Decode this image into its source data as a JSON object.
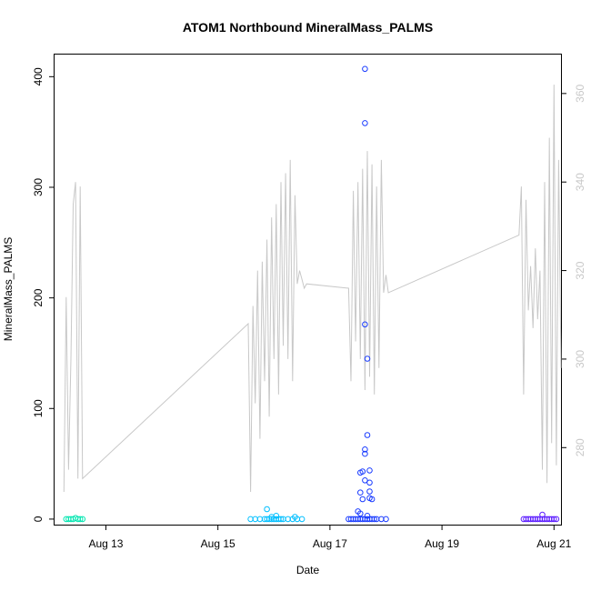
{
  "chart_data": {
    "type": "scatter",
    "title": "ATOM1 Northbound MineralMass_PALMS",
    "xlabel": "Date",
    "ylabel": "MineralMass_PALMS",
    "x_axis": {
      "type": "date",
      "range": [
        "Aug 12 02:00",
        "Aug 21 03:00"
      ],
      "ticks": [
        "Aug 13",
        "Aug 15",
        "Aug 17",
        "Aug 19",
        "Aug 21"
      ]
    },
    "y_axis": {
      "range": [
        -5,
        420
      ],
      "ticks": [
        0,
        100,
        200,
        300,
        400
      ]
    },
    "y2_axis": {
      "range": [
        262.6,
        368.8
      ],
      "ticks": [
        280,
        300,
        320,
        340,
        360
      ],
      "color": "#c8c8c8"
    },
    "grid": false,
    "series": [
      {
        "kind": "points",
        "color": "#00e6b0",
        "points": [
          [
            "Aug 12 07:00",
            0
          ],
          [
            "Aug 12 08:00",
            0
          ],
          [
            "Aug 12 09:00",
            0
          ],
          [
            "Aug 12 10:00",
            0
          ],
          [
            "Aug 12 11:00",
            1
          ],
          [
            "Aug 12 12:00",
            0
          ],
          [
            "Aug 12 13:00",
            0
          ],
          [
            "Aug 12 14:00",
            0
          ]
        ]
      },
      {
        "kind": "points",
        "color": "#00bfff",
        "points": [
          [
            "Aug 15 14:00",
            0
          ],
          [
            "Aug 15 16:00",
            0
          ],
          [
            "Aug 15 18:00",
            0
          ],
          [
            "Aug 15 20:00",
            0
          ],
          [
            "Aug 15 21:00",
            0
          ],
          [
            "Aug 15 22:00",
            0
          ],
          [
            "Aug 15 23:00",
            0
          ],
          [
            "Aug 16 00:00",
            0
          ],
          [
            "Aug 16 01:00",
            0
          ],
          [
            "Aug 16 02:00",
            0
          ],
          [
            "Aug 16 03:00",
            0
          ],
          [
            "Aug 16 04:00",
            0
          ],
          [
            "Aug 16 06:00",
            0
          ],
          [
            "Aug 16 08:00",
            0
          ],
          [
            "Aug 16 10:00",
            0
          ],
          [
            "Aug 16 12:00",
            0
          ],
          [
            "Aug 15 21:00",
            9
          ],
          [
            "Aug 15 23:00",
            2
          ],
          [
            "Aug 16 01:00",
            3
          ],
          [
            "Aug 16 09:00",
            2
          ]
        ]
      },
      {
        "kind": "points",
        "color": "#1a3cff",
        "points": [
          [
            "Aug 17 08:00",
            0
          ],
          [
            "Aug 17 09:00",
            0
          ],
          [
            "Aug 17 10:00",
            0
          ],
          [
            "Aug 17 11:00",
            0
          ],
          [
            "Aug 17 12:00",
            0
          ],
          [
            "Aug 17 13:00",
            0
          ],
          [
            "Aug 17 14:00",
            0
          ],
          [
            "Aug 17 15:00",
            0
          ],
          [
            "Aug 17 16:00",
            0
          ],
          [
            "Aug 17 17:00",
            0
          ],
          [
            "Aug 17 18:00",
            0
          ],
          [
            "Aug 17 19:00",
            0
          ],
          [
            "Aug 17 20:00",
            0
          ],
          [
            "Aug 17 22:00",
            0
          ],
          [
            "Aug 18 00:00",
            0
          ],
          [
            "Aug 17 12:00",
            7
          ],
          [
            "Aug 17 13:00",
            5
          ],
          [
            "Aug 17 13:00",
            24
          ],
          [
            "Aug 17 14:00",
            18
          ],
          [
            "Aug 17 13:00",
            42
          ],
          [
            "Aug 17 14:00",
            43
          ],
          [
            "Aug 17 15:00",
            63
          ],
          [
            "Aug 17 15:00",
            59
          ],
          [
            "Aug 17 15:00",
            35
          ],
          [
            "Aug 17 16:00",
            76
          ],
          [
            "Aug 17 16:00",
            3
          ],
          [
            "Aug 17 17:00",
            44
          ],
          [
            "Aug 17 17:00",
            33
          ],
          [
            "Aug 17 17:00",
            25
          ],
          [
            "Aug 17 17:00",
            19
          ],
          [
            "Aug 17 18:00",
            18
          ],
          [
            "Aug 17 16:00",
            145
          ],
          [
            "Aug 17 15:00",
            176
          ],
          [
            "Aug 17 15:00",
            358
          ],
          [
            "Aug 17 15:00",
            407
          ]
        ]
      },
      {
        "kind": "points",
        "color": "#5a1aff",
        "points": [
          [
            "Aug 20 11:00",
            0
          ],
          [
            "Aug 20 12:00",
            0
          ],
          [
            "Aug 20 13:00",
            0
          ],
          [
            "Aug 20 14:00",
            0
          ],
          [
            "Aug 20 15:00",
            0
          ],
          [
            "Aug 20 16:00",
            0
          ],
          [
            "Aug 20 17:00",
            0
          ],
          [
            "Aug 20 18:00",
            0
          ],
          [
            "Aug 20 19:00",
            0
          ],
          [
            "Aug 20 20:00",
            0
          ],
          [
            "Aug 20 21:00",
            0
          ],
          [
            "Aug 20 22:00",
            0
          ],
          [
            "Aug 20 23:00",
            0
          ],
          [
            "Aug 21 00:00",
            0
          ],
          [
            "Aug 21 01:00",
            0
          ],
          [
            "Aug 20 19:00",
            4
          ]
        ]
      },
      {
        "kind": "line",
        "axis": "y2",
        "color": "#c8c8c8",
        "points": [
          [
            "Aug 12 06:00",
            270
          ],
          [
            "Aug 12 07:00",
            314
          ],
          [
            "Aug 12 08:00",
            275
          ],
          [
            "Aug 12 09:00",
            300
          ],
          [
            "Aug 12 10:00",
            335
          ],
          [
            "Aug 12 11:00",
            340
          ],
          [
            "Aug 12 12:00",
            273
          ],
          [
            "Aug 12 13:00",
            339
          ],
          [
            "Aug 12 14:00",
            273
          ],
          [
            "Aug 15 13:00",
            308
          ],
          [
            "Aug 15 14:00",
            270
          ],
          [
            "Aug 15 15:00",
            312
          ],
          [
            "Aug 15 16:00",
            290
          ],
          [
            "Aug 15 17:00",
            320
          ],
          [
            "Aug 15 18:00",
            282
          ],
          [
            "Aug 15 19:00",
            322
          ],
          [
            "Aug 15 20:00",
            295
          ],
          [
            "Aug 15 21:00",
            327
          ],
          [
            "Aug 15 22:00",
            287
          ],
          [
            "Aug 15 23:00",
            332
          ],
          [
            "Aug 16 00:00",
            300
          ],
          [
            "Aug 16 01:00",
            335
          ],
          [
            "Aug 16 02:00",
            292
          ],
          [
            "Aug 16 03:00",
            340
          ],
          [
            "Aug 16 04:00",
            303
          ],
          [
            "Aug 16 05:00",
            342
          ],
          [
            "Aug 16 06:00",
            300
          ],
          [
            "Aug 16 07:00",
            345
          ],
          [
            "Aug 16 08:00",
            295
          ],
          [
            "Aug 16 09:00",
            337
          ],
          [
            "Aug 16 10:00",
            317
          ],
          [
            "Aug 16 11:00",
            320
          ],
          [
            "Aug 16 12:00",
            318
          ],
          [
            "Aug 16 13:00",
            316
          ],
          [
            "Aug 16 14:00",
            317
          ],
          [
            "Aug 17 08:00",
            316
          ],
          [
            "Aug 17 09:00",
            295
          ],
          [
            "Aug 17 10:00",
            338
          ],
          [
            "Aug 17 11:00",
            304
          ],
          [
            "Aug 17 12:00",
            340
          ],
          [
            "Aug 17 13:00",
            300
          ],
          [
            "Aug 17 14:00",
            343
          ],
          [
            "Aug 17 15:00",
            293
          ],
          [
            "Aug 17 16:00",
            347
          ],
          [
            "Aug 17 17:00",
            296
          ],
          [
            "Aug 17 18:00",
            344
          ],
          [
            "Aug 17 19:00",
            292
          ],
          [
            "Aug 17 20:00",
            339
          ],
          [
            "Aug 17 21:00",
            298
          ],
          [
            "Aug 17 22:00",
            345
          ],
          [
            "Aug 17 23:00",
            315
          ],
          [
            "Aug 18 00:00",
            319
          ],
          [
            "Aug 18 01:00",
            315
          ],
          [
            "Aug 20 09:00",
            328
          ],
          [
            "Aug 20 10:00",
            339
          ],
          [
            "Aug 20 11:00",
            292
          ],
          [
            "Aug 20 12:00",
            336
          ],
          [
            "Aug 20 13:00",
            311
          ],
          [
            "Aug 20 14:00",
            321
          ],
          [
            "Aug 20 15:00",
            307
          ],
          [
            "Aug 20 16:00",
            325
          ],
          [
            "Aug 20 17:00",
            309
          ],
          [
            "Aug 20 18:00",
            320
          ],
          [
            "Aug 20 19:00",
            275
          ],
          [
            "Aug 20 20:00",
            340
          ],
          [
            "Aug 20 21:00",
            272
          ],
          [
            "Aug 20 22:00",
            350
          ],
          [
            "Aug 20 23:00",
            281
          ],
          [
            "Aug 21 00:00",
            362
          ],
          [
            "Aug 21 01:00",
            276
          ],
          [
            "Aug 21 02:00",
            345
          ],
          [
            "Aug 21 03:00",
            298
          ]
        ]
      }
    ]
  }
}
